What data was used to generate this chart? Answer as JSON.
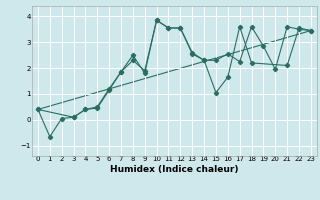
{
  "title": "",
  "xlabel": "Humidex (Indice chaleur)",
  "ylabel": "",
  "bg_color": "#cfe8ec",
  "grid_color": "#ffffff",
  "line_color": "#2a6e63",
  "xlim": [
    -0.5,
    23.5
  ],
  "ylim": [
    -1.4,
    4.4
  ],
  "yticks": [
    -1,
    0,
    1,
    2,
    3,
    4
  ],
  "xticks": [
    0,
    1,
    2,
    3,
    4,
    5,
    6,
    7,
    8,
    9,
    10,
    11,
    12,
    13,
    14,
    15,
    16,
    17,
    18,
    19,
    20,
    21,
    22,
    23
  ],
  "line1_x": [
    0,
    1,
    2,
    3,
    4,
    5,
    6,
    7,
    8,
    9,
    10,
    11,
    12,
    13,
    14,
    15,
    16,
    17,
    18,
    19,
    20,
    21,
    22,
    23
  ],
  "line1_y": [
    0.4,
    -0.65,
    0.05,
    0.1,
    0.4,
    0.5,
    1.2,
    1.85,
    2.3,
    1.9,
    3.85,
    3.55,
    3.55,
    2.6,
    2.3,
    2.3,
    2.55,
    2.25,
    3.6,
    2.85,
    1.95,
    3.6,
    3.5,
    3.45
  ],
  "line2_x": [
    0,
    3,
    4,
    5,
    6,
    7,
    8,
    9,
    10,
    11,
    12,
    13,
    14,
    15,
    16,
    17,
    18,
    21,
    22,
    23
  ],
  "line2_y": [
    0.4,
    0.1,
    0.4,
    0.45,
    1.15,
    1.85,
    2.5,
    1.8,
    3.85,
    3.55,
    3.55,
    2.55,
    2.3,
    1.05,
    1.65,
    3.6,
    2.2,
    2.1,
    3.55,
    3.45
  ],
  "line3_x": [
    0,
    23
  ],
  "line3_y": [
    0.4,
    3.45
  ],
  "tick_fontsize": 5.0,
  "xlabel_fontsize": 6.5
}
